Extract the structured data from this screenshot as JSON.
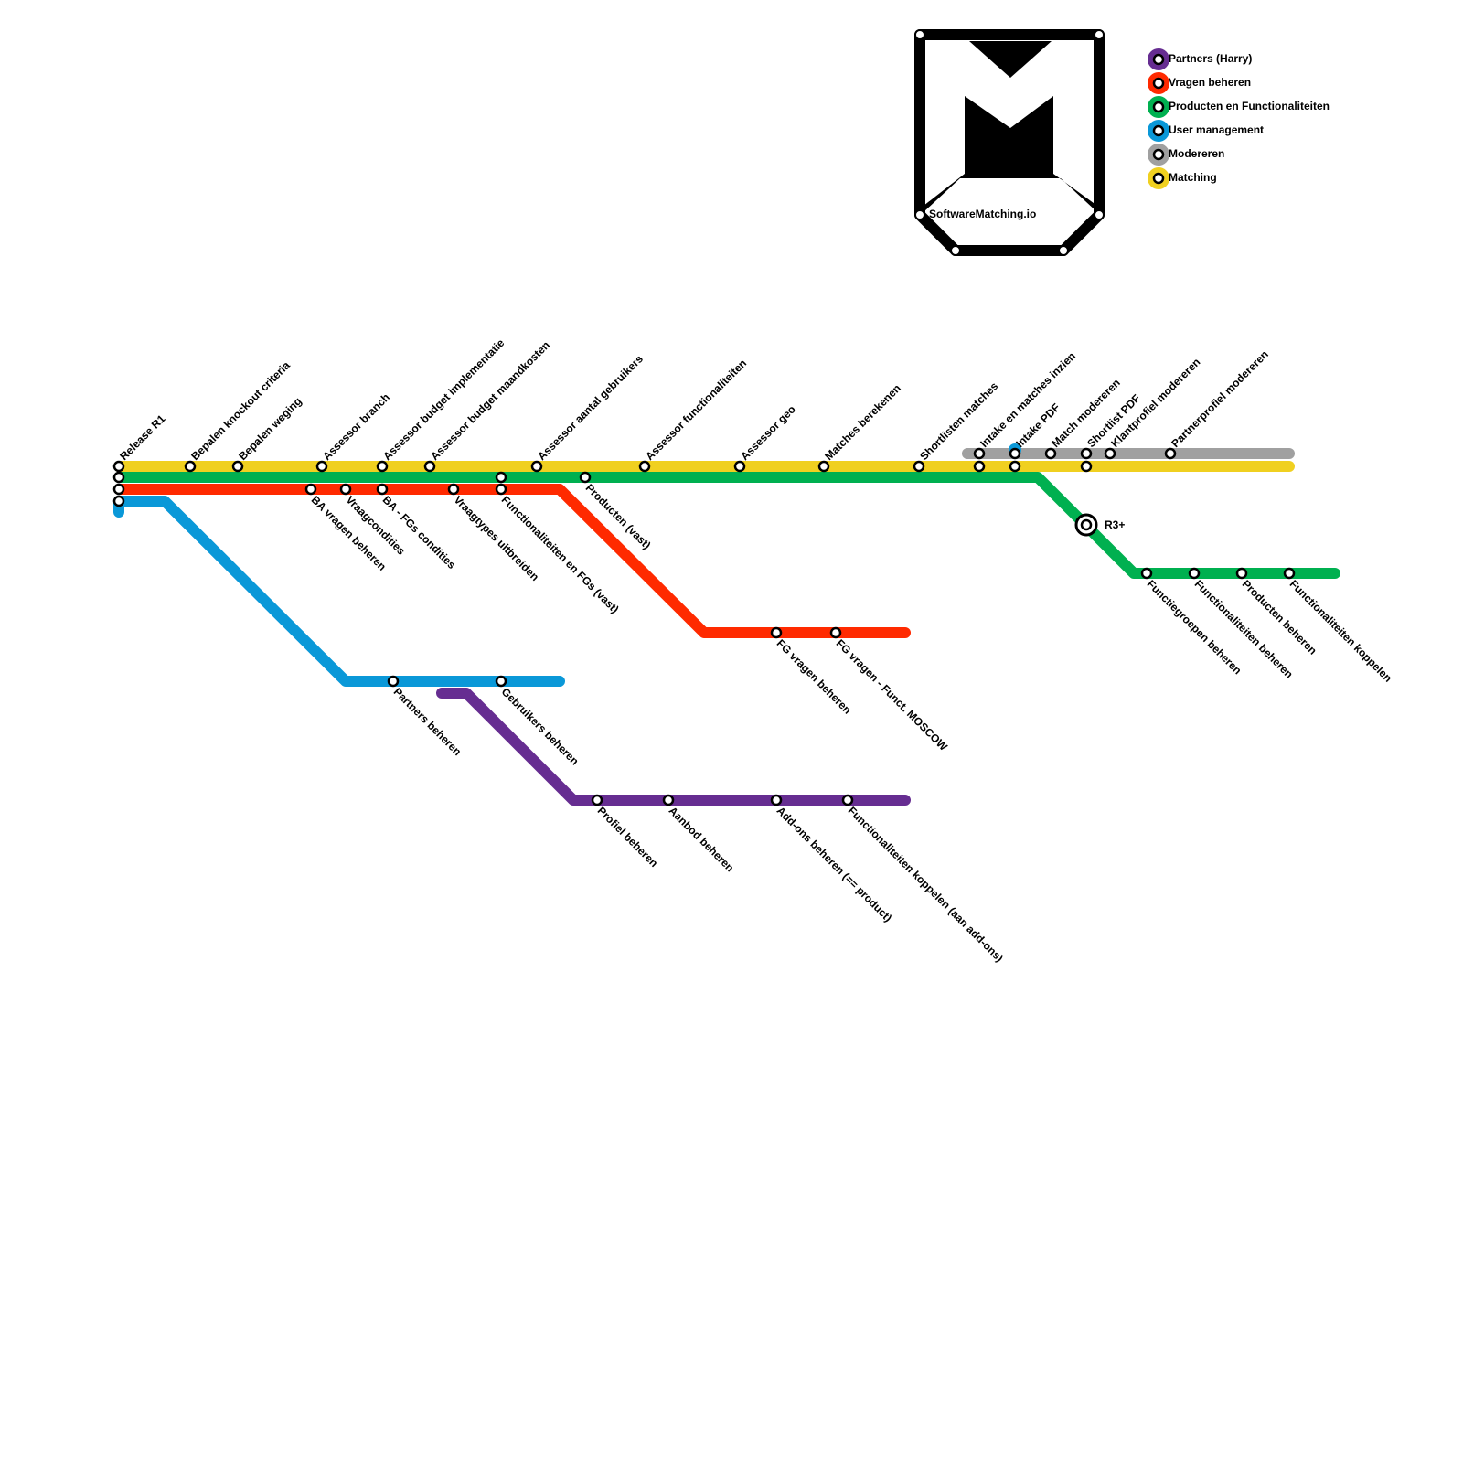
{
  "logo": {
    "text": "SoftwareMatching.io"
  },
  "legend": [
    "Partners (Harry)",
    "Vragen beheren",
    "Producten en Functionaliteiten",
    "User management",
    "Modereren",
    "Matching"
  ],
  "stations": [
    {
      "label": "Release R1"
    },
    {
      "label": "Bepalen knockout criteria"
    },
    {
      "label": "Bepalen weging"
    },
    {
      "label": "Assessor branch"
    },
    {
      "label": "Assessor budget implementatie"
    },
    {
      "label": "Assessor budget maandkosten"
    },
    {
      "label": "Assessor aantal gebruikers"
    },
    {
      "label": "Assessor functionaliteiten"
    },
    {
      "label": "Assessor geo"
    },
    {
      "label": "Matches berekenen"
    },
    {
      "label": "Shortlisten matches"
    },
    {
      "label": "Intake en matches inzien"
    },
    {
      "label": "Intake PDF"
    },
    {
      "label": "Match modereren"
    },
    {
      "label": "Shortlist PDF"
    },
    {
      "label": "Klantprofiel modereren"
    },
    {
      "label": "Partnerprofiel modereren"
    },
    {
      "label": "BA vragen beheren"
    },
    {
      "label": "Vraagcondities"
    },
    {
      "label": "BA - FGs condities"
    },
    {
      "label": "Vraagtypes uitbreiden"
    },
    {
      "label": "Functionaliteiten en FGs (vast)"
    },
    {
      "label": "Producten (vast)"
    },
    {
      "label": "FG vragen beheren"
    },
    {
      "label": "FG vragen - Funct. MOSCOW"
    },
    {
      "label": "Partners beheren"
    },
    {
      "label": "Gebruikers beheren"
    },
    {
      "label": "Profiel beheren"
    },
    {
      "label": "Aanbod beheren"
    },
    {
      "label": "Add-ons beheren (== product)"
    },
    {
      "label": "Functionaliteiten koppelen (aan add-ons)"
    },
    {
      "label": "Functiegroepen beheren"
    },
    {
      "label": "Functionaliteiten beheren"
    },
    {
      "label": "Producten beheren"
    },
    {
      "label": "Functionaliteiten koppelen"
    }
  ],
  "interchange": {
    "label": "R3+"
  }
}
